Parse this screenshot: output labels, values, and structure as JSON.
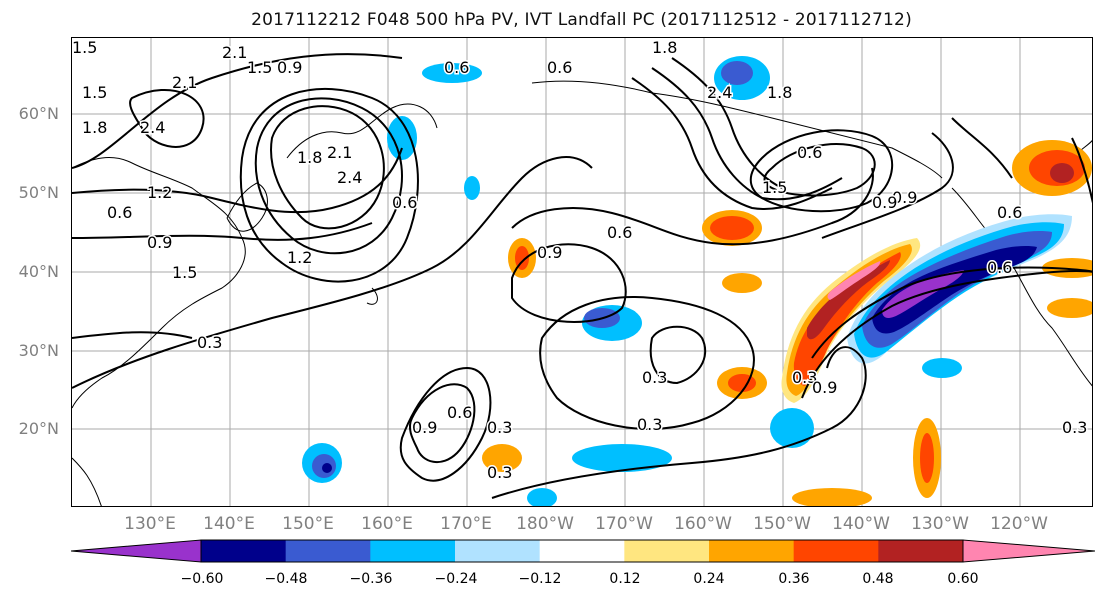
{
  "title": "2017112212 F048 500 hPa PV, IVT Landfall PC (2017112512 - 2017112712)",
  "lat_labels": [
    "60°N",
    "50°N",
    "40°N",
    "30°N",
    "20°N"
  ],
  "lon_labels": [
    "130°E",
    "140°E",
    "150°E",
    "160°E",
    "170°E",
    "180°W",
    "170°W",
    "160°W",
    "150°W",
    "140°W",
    "130°W",
    "120°W"
  ],
  "contour_labels": [
    "2.1",
    "1.5",
    "0.9",
    "0.3",
    "0.6",
    "1.8",
    "2.4",
    "2.1",
    "0.6",
    "1.5",
    "2.4",
    "1.8",
    "1.5",
    "1.8",
    "1.2",
    "2.4",
    "2.1",
    "0.6",
    "0.9",
    "1.2",
    "0.6",
    "1.5",
    "1.8",
    "0.9",
    "0.9",
    "0.6",
    "0.6",
    "1.5",
    "0.3",
    "0.3",
    "0.3",
    "0.6",
    "0.9",
    "0.3",
    "0.6",
    "0.3",
    "0.6",
    "0.9",
    "0.3",
    "0.9"
  ],
  "colorbar": {
    "ticks": [
      "−0.60",
      "−0.48",
      "−0.36",
      "−0.24",
      "−0.12",
      "0.12",
      "0.24",
      "0.36",
      "0.48",
      "0.60"
    ],
    "colors": [
      "#9932cc",
      "#00008b",
      "#3a5bd1",
      "#00bfff",
      "#b0e2ff",
      "#ffffff",
      "#ffe680",
      "#ffa500",
      "#ff4500",
      "#b22222",
      "#ff85b0"
    ]
  },
  "colors": {
    "frame": "#000000",
    "grid": "#aaaaaa",
    "axis_label": "#808080",
    "contour": "#000000"
  }
}
